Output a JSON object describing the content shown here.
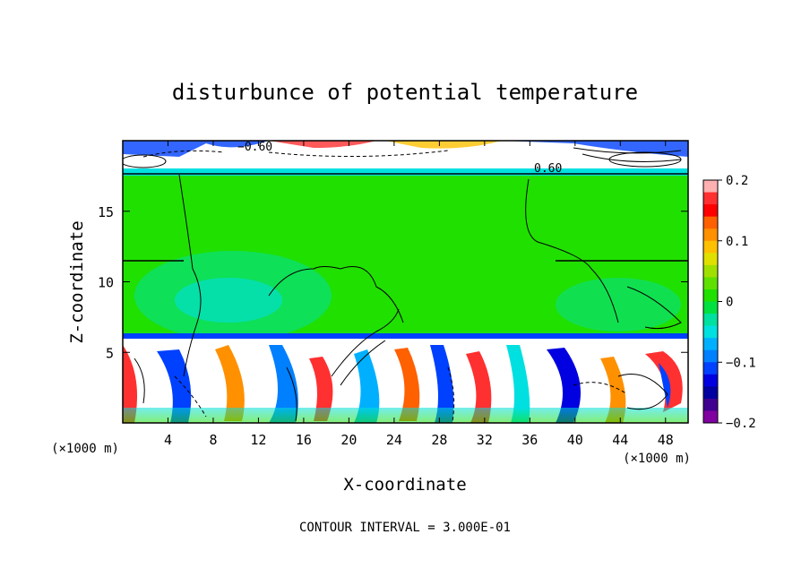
{
  "chart_data": {
    "type": "heatmap",
    "title": "disturbunce of potential temperature",
    "xlabel": "X-coordinate",
    "ylabel": "Z-coordinate",
    "x_unit": "(×1000 m)",
    "z_unit": "(×1000 m)",
    "footer": "CONTOUR INTERVAL = 3.000E-01",
    "xlim": [
      0,
      50
    ],
    "ylim": [
      0,
      20
    ],
    "x_ticks": [
      4,
      8,
      12,
      16,
      20,
      24,
      28,
      32,
      36,
      40,
      44,
      48
    ],
    "y_ticks": [
      5,
      10,
      15
    ],
    "colorbar": {
      "range": [
        -0.2,
        0.2
      ],
      "ticks": [
        {
          "value": 0.2,
          "label": "0.2"
        },
        {
          "value": 0.1,
          "label": "0.1"
        },
        {
          "value": 0.0,
          "label": "0"
        },
        {
          "value": -0.1,
          "label": "−0.1"
        },
        {
          "value": -0.2,
          "label": "−0.2"
        }
      ],
      "colors": [
        "#ffb0b0",
        "#ff3030",
        "#ff0000",
        "#ff6000",
        "#ff9000",
        "#ffc000",
        "#e0e000",
        "#a0e000",
        "#60e000",
        "#20e000",
        "#00e040",
        "#00e0a0",
        "#00e0e0",
        "#00b0ff",
        "#0080ff",
        "#0040ff",
        "#0000e0",
        "#0000a0",
        "#400090",
        "#8000a0"
      ]
    },
    "contour_labels": [
      {
        "x": 10.5,
        "z": 19.3,
        "text": "−0.60"
      },
      {
        "x": 38.4,
        "z": 18.0,
        "text": "0.60"
      }
    ]
  }
}
